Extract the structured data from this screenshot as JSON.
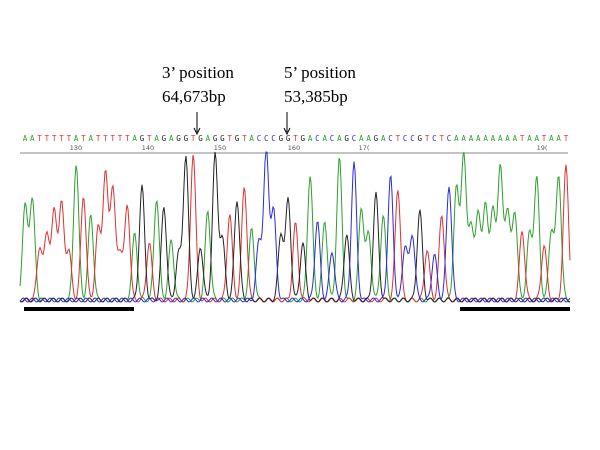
{
  "annotations": [
    {
      "label": "3’ position",
      "value": "64,673bp"
    },
    {
      "label": "5’ position",
      "value": "53,385bp"
    }
  ],
  "sequence": [
    "A",
    "A",
    "T",
    "T",
    "T",
    "T",
    "T",
    "A",
    "T",
    "A",
    "T",
    "T",
    "T",
    "T",
    "T",
    "A",
    "G",
    "T",
    "A",
    "G",
    "A",
    "G",
    "G",
    "T",
    "G",
    "A",
    "G",
    "G",
    "T",
    "G",
    "T",
    "A",
    "C",
    "C",
    "C",
    "G",
    "G",
    "T",
    "G",
    "A",
    "C",
    "A",
    "C",
    "A",
    "G",
    "C",
    "A",
    "A",
    "G",
    "A",
    "C",
    "T",
    "C",
    "C",
    "G",
    "T",
    "C",
    "T",
    "C",
    "A",
    "A",
    "A",
    "A",
    "A",
    "A",
    "A",
    "A",
    "A",
    "T",
    "A",
    "A",
    "T",
    "A",
    "A",
    "T"
  ],
  "ruler": [
    "130",
    "140",
    "150",
    "160",
    "17(",
    "19("
  ]
}
